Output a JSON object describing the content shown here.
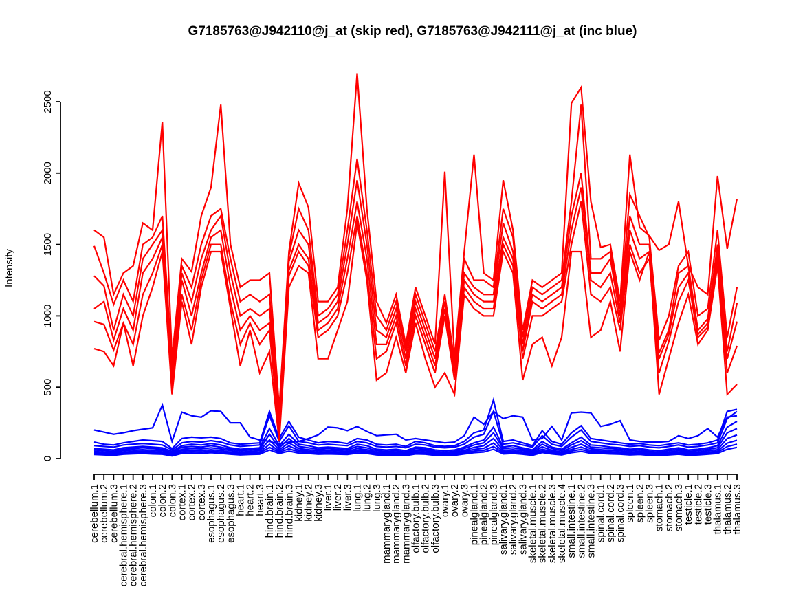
{
  "title": "G7185763@J942110@j_at (skip red), G7185763@J942111@j_at (inc blue)",
  "chart_data": {
    "type": "line",
    "title": "G7185763@J942110@j_at (skip red), G7185763@J942111@j_at (inc blue)",
    "xlabel": "",
    "ylabel": "Intensity",
    "ylim": [
      0,
      2750
    ],
    "yticks": [
      0,
      500,
      1000,
      1500,
      2000,
      2500
    ],
    "ytick_labels": [
      "0",
      "500",
      "1000",
      "1500",
      "2000",
      "2500"
    ],
    "grid": "off",
    "legend_position": "none",
    "colors": {
      "skip_group": "#FF0000",
      "inc_group": "#0000FF",
      "axis": "#000000"
    },
    "categories": [
      "cerebellum.1",
      "cerebellum.2",
      "cerebellum.3",
      "cerebral.hemisphere.1",
      "cerebral.hemisphere.2",
      "cerebral.hemisphere.3",
      "colon.1",
      "colon.2",
      "colon.3",
      "cortex.1",
      "cortex.2",
      "cortex.3",
      "esophagus.1",
      "esophagus.2",
      "esophagus.3",
      "heart.1",
      "heart.2",
      "heart.3",
      "hind.brain.1",
      "hind.brain.2",
      "hind.brain.3",
      "kidney.1",
      "kidney.2",
      "kidney.3",
      "liver.1",
      "liver.2",
      "liver.3",
      "lung.1",
      "lung.2",
      "lung.3",
      "mammarygland.1",
      "mammarygland.2",
      "mammarygland.3",
      "olfactory.bulb.1",
      "olfactory.bulb.2",
      "olfactory.bulb.3",
      "ovary.1",
      "ovary.2",
      "ovary.3",
      "pinealgland.1",
      "pinealgland.2",
      "pinealgland.3",
      "salivary.gland.1",
      "salivary.gland.2",
      "salivary.gland.3",
      "skeletal.muscle.1",
      "skeletal.muscle.2",
      "skeletal.muscle.3",
      "skeletal.muscle.4",
      "small.intestine.1",
      "small.intestine.2",
      "small.intestine.3",
      "spinal.cord.1",
      "spinal.cord.2",
      "spinal.cord.3",
      "spleen.1",
      "spleen.2",
      "spleen.3",
      "stomach.1",
      "stomach.2",
      "stomach.3",
      "testicle.1",
      "testicle.2",
      "testicle.3",
      "thalamus.1",
      "thalamus.2",
      "thalamus.3"
    ],
    "series": [
      {
        "name": "J942110_skip.1",
        "group": "skip",
        "color": "#FF0000",
        "values": [
          1600,
          1550,
          1150,
          1300,
          1350,
          1650,
          1600,
          2360,
          700,
          1400,
          1310,
          1700,
          1900,
          2480,
          1500,
          1200,
          1250,
          1250,
          1300,
          350,
          1450,
          1930,
          1760,
          1100,
          1100,
          1200,
          1750,
          2700,
          1750,
          1100,
          950,
          1150,
          800,
          1200,
          1000,
          800,
          2010,
          700,
          1450,
          2130,
          1300,
          1250,
          1950,
          1600,
          900,
          1250,
          1200,
          1250,
          1300,
          2490,
          2600,
          1800,
          1480,
          1500,
          1100,
          2130,
          1620,
          1560,
          1460,
          1500,
          1800,
          1350,
          1200,
          1150,
          1980,
          1470,
          1820
        ]
      },
      {
        "name": "J942110_skip.2",
        "group": "skip",
        "color": "#FF0000",
        "values": [
          1490,
          1300,
          1080,
          1250,
          1100,
          1500,
          1550,
          1700,
          650,
          1350,
          1200,
          1500,
          1700,
          1750,
          1400,
          1100,
          1150,
          1100,
          1150,
          300,
          1420,
          1750,
          1600,
          1000,
          1050,
          1150,
          1600,
          2100,
          1600,
          1000,
          900,
          1100,
          780,
          1150,
          950,
          750,
          1150,
          680,
          1400,
          1250,
          1250,
          1200,
          1750,
          1550,
          850,
          1200,
          1150,
          1200,
          1250,
          1800,
          2480,
          1400,
          1400,
          1450,
          1050,
          1850,
          1700,
          1550,
          830,
          1000,
          1350,
          1450,
          1000,
          1050,
          1600,
          850,
          1200
        ]
      },
      {
        "name": "J942110_skip.3",
        "group": "skip",
        "color": "#FF0000",
        "values": [
          1280,
          1210,
          900,
          1150,
          1000,
          1400,
          1500,
          1600,
          600,
          1300,
          1100,
          1400,
          1600,
          1700,
          1300,
          1000,
          1050,
          1000,
          1050,
          250,
          1380,
          1600,
          1500,
          950,
          1000,
          1100,
          1500,
          1950,
          1500,
          900,
          850,
          1050,
          750,
          1100,
          900,
          700,
          1100,
          650,
          1300,
          1200,
          1150,
          1150,
          1650,
          1450,
          800,
          1150,
          1100,
          1150,
          1200,
          1700,
          2000,
          1300,
          1300,
          1400,
          1000,
          1700,
          1500,
          1500,
          740,
          900,
          1300,
          1350,
          900,
          980,
          1500,
          750,
          1090
        ]
      },
      {
        "name": "J942110_skip.4",
        "group": "skip",
        "color": "#FF0000",
        "values": [
          1050,
          1100,
          830,
          1050,
          900,
          1300,
          1400,
          1550,
          550,
          1250,
          1000,
          1300,
          1550,
          1600,
          1200,
          900,
          1000,
          900,
          950,
          200,
          1320,
          1500,
          1400,
          900,
          950,
          1050,
          1400,
          1800,
          1400,
          800,
          800,
          1000,
          700,
          1050,
          850,
          650,
          1050,
          600,
          1250,
          1150,
          1100,
          1100,
          1550,
          1400,
          750,
          1100,
          1050,
          1100,
          1150,
          1600,
          1900,
          1250,
          1200,
          1300,
          950,
          1600,
          1400,
          1450,
          700,
          870,
          1200,
          1300,
          870,
          950,
          1450,
          700,
          960
        ]
      },
      {
        "name": "J942110_skip.5",
        "group": "skip",
        "color": "#FF0000",
        "values": [
          960,
          940,
          760,
          950,
          800,
          1150,
          1300,
          1500,
          500,
          1150,
          900,
          1250,
          1500,
          1500,
          1100,
          800,
          950,
          800,
          900,
          160,
          1280,
          1450,
          1350,
          850,
          900,
          1000,
          1300,
          1700,
          1300,
          700,
          750,
          950,
          650,
          1000,
          800,
          600,
          1000,
          550,
          1200,
          1100,
          1050,
          1050,
          1500,
          1350,
          700,
          1000,
          1000,
          1050,
          1100,
          1500,
          1800,
          1150,
          1100,
          1200,
          900,
          1500,
          1300,
          1400,
          600,
          820,
          1100,
          1250,
          850,
          920,
          1400,
          600,
          790
        ]
      },
      {
        "name": "J942110_skip.6",
        "group": "skip",
        "color": "#FF0000",
        "values": [
          770,
          750,
          650,
          950,
          650,
          1000,
          1200,
          1450,
          450,
          1100,
          800,
          1200,
          1450,
          1450,
          1050,
          650,
          900,
          600,
          750,
          120,
          1200,
          1350,
          1300,
          700,
          700,
          900,
          1100,
          1650,
          1250,
          550,
          600,
          850,
          600,
          950,
          700,
          500,
          600,
          450,
          1150,
          1050,
          1000,
          1000,
          1450,
          1300,
          550,
          800,
          850,
          650,
          850,
          1450,
          1450,
          850,
          900,
          1100,
          750,
          1450,
          1250,
          1450,
          450,
          700,
          950,
          1150,
          800,
          900,
          1350,
          450,
          520
        ]
      },
      {
        "name": "J942111_inc.1",
        "group": "inc",
        "color": "#0000FF",
        "values": [
          200,
          185,
          170,
          180,
          195,
          205,
          215,
          375,
          120,
          325,
          300,
          290,
          335,
          330,
          250,
          250,
          150,
          130,
          120,
          100,
          115,
          120,
          140,
          165,
          220,
          215,
          195,
          225,
          190,
          160,
          165,
          170,
          130,
          140,
          130,
          120,
          110,
          115,
          160,
          290,
          240,
          330,
          280,
          300,
          290,
          130,
          140,
          225,
          130,
          320,
          325,
          320,
          225,
          240,
          265,
          130,
          120,
          115,
          115,
          120,
          160,
          140,
          160,
          210,
          150,
          290,
          300
        ]
      },
      {
        "name": "J942111_inc.2",
        "group": "inc",
        "color": "#0000FF",
        "values": [
          115,
          100,
          95,
          110,
          120,
          130,
          125,
          120,
          70,
          140,
          150,
          145,
          150,
          140,
          110,
          100,
          105,
          110,
          330,
          140,
          260,
          150,
          130,
          110,
          120,
          115,
          105,
          140,
          130,
          100,
          95,
          100,
          85,
          120,
          110,
          90,
          85,
          90,
          120,
          180,
          200,
          411,
          120,
          130,
          110,
          90,
          195,
          120,
          100,
          180,
          230,
          140,
          130,
          120,
          110,
          100,
          105,
          95,
          90,
          100,
          110,
          95,
          100,
          110,
          130,
          330,
          345
        ]
      },
      {
        "name": "J942111_inc.3",
        "group": "inc",
        "color": "#0000FF",
        "values": [
          90,
          85,
          80,
          95,
          100,
          105,
          100,
          95,
          60,
          110,
          120,
          115,
          125,
          115,
          95,
          85,
          90,
          95,
          300,
          120,
          230,
          120,
          110,
          95,
          100,
          95,
          90,
          120,
          110,
          85,
          80,
          85,
          75,
          100,
          95,
          80,
          75,
          80,
          100,
          150,
          170,
          330,
          100,
          110,
          95,
          80,
          160,
          100,
          85,
          150,
          200,
          120,
          110,
          100,
          95,
          85,
          90,
          80,
          75,
          85,
          95,
          80,
          85,
          95,
          110,
          280,
          330
        ]
      },
      {
        "name": "J942111_inc.4",
        "group": "inc",
        "color": "#0000FF",
        "values": [
          70,
          65,
          60,
          75,
          80,
          85,
          80,
          75,
          50,
          90,
          100,
          95,
          105,
          95,
          75,
          65,
          70,
          75,
          210,
          90,
          170,
          100,
          90,
          75,
          80,
          75,
          70,
          100,
          90,
          65,
          60,
          65,
          55,
          80,
          75,
          60,
          55,
          60,
          80,
          110,
          130,
          220,
          80,
          90,
          75,
          60,
          120,
          80,
          65,
          110,
          150,
          95,
          90,
          80,
          75,
          65,
          70,
          60,
          55,
          65,
          75,
          60,
          65,
          75,
          90,
          220,
          260
        ]
      },
      {
        "name": "J942111_inc.5",
        "group": "inc",
        "color": "#0000FF",
        "values": [
          60,
          55,
          50,
          65,
          70,
          75,
          70,
          65,
          40,
          80,
          85,
          80,
          90,
          80,
          65,
          55,
          60,
          65,
          170,
          75,
          140,
          85,
          75,
          65,
          70,
          65,
          60,
          85,
          75,
          55,
          50,
          55,
          45,
          70,
          65,
          50,
          45,
          50,
          70,
          95,
          110,
          180,
          70,
          75,
          65,
          50,
          100,
          70,
          55,
          95,
          125,
          80,
          75,
          70,
          65,
          55,
          60,
          50,
          45,
          55,
          65,
          50,
          55,
          65,
          75,
          180,
          210
        ]
      },
      {
        "name": "J942111_inc.6",
        "group": "inc",
        "color": "#0000FF",
        "values": [
          50,
          45,
          42,
          55,
          60,
          62,
          58,
          55,
          35,
          65,
          70,
          68,
          75,
          68,
          55,
          45,
          50,
          55,
          130,
          62,
          110,
          70,
          62,
          55,
          58,
          55,
          50,
          70,
          62,
          45,
          42,
          45,
          38,
          58,
          55,
          42,
          38,
          42,
          58,
          78,
          90,
          140,
          58,
          62,
          55,
          42,
          82,
          58,
          45,
          78,
          100,
          68,
          62,
          58,
          55,
          45,
          50,
          42,
          38,
          45,
          55,
          42,
          45,
          55,
          62,
          140,
          165
        ]
      },
      {
        "name": "J942111_inc.7",
        "group": "inc",
        "color": "#0000FF",
        "values": [
          42,
          38,
          35,
          45,
          50,
          52,
          48,
          45,
          28,
          55,
          58,
          56,
          62,
          56,
          45,
          38,
          42,
          45,
          100,
          52,
          88,
          58,
          52,
          45,
          48,
          45,
          42,
          58,
          52,
          38,
          35,
          38,
          32,
          48,
          45,
          35,
          32,
          35,
          48,
          64,
          72,
          108,
          48,
          52,
          45,
          35,
          66,
          48,
          38,
          64,
          80,
          56,
          52,
          48,
          45,
          38,
          42,
          35,
          32,
          38,
          45,
          35,
          38,
          45,
          52,
          108,
          128
        ]
      },
      {
        "name": "J942111_inc.8",
        "group": "inc",
        "color": "#0000FF",
        "values": [
          35,
          32,
          28,
          38,
          42,
          44,
          40,
          38,
          22,
          45,
          48,
          46,
          52,
          46,
          38,
          32,
          35,
          38,
          78,
          44,
          68,
          48,
          44,
          38,
          40,
          38,
          35,
          48,
          44,
          32,
          28,
          32,
          26,
          40,
          38,
          28,
          26,
          28,
          40,
          52,
          58,
          84,
          40,
          44,
          38,
          28,
          54,
          40,
          32,
          52,
          64,
          46,
          44,
          40,
          38,
          32,
          35,
          28,
          26,
          32,
          38,
          28,
          32,
          38,
          44,
          84,
          100
        ]
      },
      {
        "name": "J942111_inc.9",
        "group": "inc",
        "color": "#0000FF",
        "values": [
          28,
          25,
          22,
          30,
          33,
          35,
          32,
          30,
          18,
          36,
          38,
          36,
          41,
          36,
          30,
          25,
          28,
          30,
          60,
          35,
          52,
          38,
          35,
          30,
          32,
          30,
          28,
          38,
          35,
          25,
          22,
          25,
          20,
          32,
          30,
          22,
          20,
          22,
          32,
          41,
          46,
          65,
          32,
          35,
          30,
          22,
          42,
          32,
          25,
          41,
          50,
          36,
          35,
          32,
          30,
          25,
          28,
          22,
          20,
          25,
          30,
          22,
          25,
          30,
          35,
          65,
          78
        ]
      }
    ]
  }
}
